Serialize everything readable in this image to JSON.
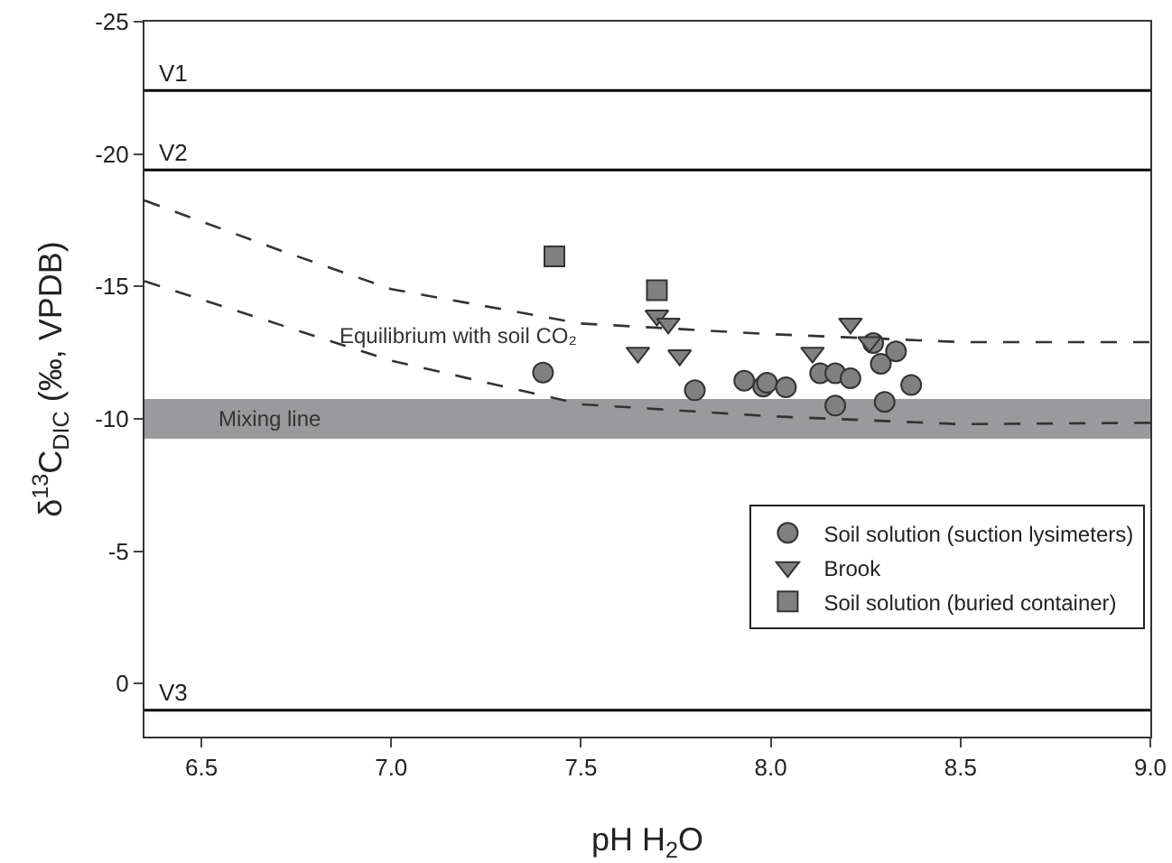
{
  "chart_data": {
    "type": "scatter",
    "xlabel": "pH H$_{2}$O",
    "ylabel": "δ$^{13}$C$_{DIC}$ (‰, VPDB)",
    "xlim": [
      6.35,
      9.0
    ],
    "xticks": [
      6.5,
      {
        "value": 7,
        "label": "7.0"
      },
      7.5,
      {
        "value": 8,
        "label": "8.0"
      },
      8.5,
      {
        "value": 9,
        "label": "9.0"
      }
    ],
    "ylim": [
      2,
      -25
    ],
    "yticks": [
      -25,
      -20,
      -15,
      -10,
      -5,
      0
    ],
    "grid": false,
    "legend": "bottom right",
    "line_style": "dashed",
    "series": [
      {
        "name": "Soil solution (suction lysimeters)",
        "marker": "circle",
        "color": "#808080",
        "x": [
          7.4,
          7.8,
          7.93,
          7.98,
          7.99,
          8.04,
          8.13,
          8.17,
          8.21,
          8.17,
          8.27,
          8.29,
          8.33,
          8.37,
          8.3
        ],
        "values": [
          -11.75,
          -11.08,
          -11.44,
          -11.22,
          -11.36,
          -11.19,
          -11.72,
          -11.72,
          -11.53,
          -10.5,
          -12.86,
          -12.08,
          -12.55,
          -11.28,
          -10.64
        ]
      },
      {
        "name": "Brook",
        "marker": "triangle",
        "color": "#808080",
        "x": [
          7.7,
          7.73,
          7.65,
          7.76,
          8.11,
          8.21,
          8.26
        ],
        "values": [
          -13.9,
          -13.6,
          -12.5,
          -12.4,
          -12.5,
          -13.6,
          -12.9
        ]
      },
      {
        "name": "Soil solution (buried container)",
        "marker": "square",
        "color": "#808080",
        "x": [
          7.43,
          7.7
        ],
        "values": [
          -16.14,
          -14.86
        ]
      },
      {
        "type": "line",
        "marker": "none",
        "color": "#333333",
        "x": [
          6.35,
          6.7,
          7.0,
          7.5,
          8.0,
          8.5,
          9.0
        ],
        "values": [
          -18.25,
          -16.4,
          -14.9,
          -13.6,
          -13.2,
          -12.9,
          -12.9
        ]
      },
      {
        "type": "line",
        "marker": "none",
        "color": "#333333",
        "x": [
          6.35,
          7.0,
          7.5,
          8.0,
          8.5,
          9.0
        ],
        "values": [
          -15.2,
          -12.2,
          -10.55,
          -10.1,
          -9.8,
          -9.85
        ]
      }
    ],
    "ref_lines": [
      {
        "axis": "y",
        "value": -22.4,
        "label": "V1",
        "color": "#000000"
      },
      {
        "axis": "y",
        "value": -19.4,
        "label": "V2",
        "color": "#000000"
      },
      {
        "axis": "y",
        "value": 1.0,
        "label": "V3",
        "color": "#000000"
      }
    ],
    "bands": [
      {
        "axis": "y",
        "from": -10.75,
        "to": -9.25,
        "label": "Mixing line",
        "color": "#9a9a9c"
      }
    ],
    "annotations": [
      "Equilibrium with soil CO₂"
    ]
  }
}
